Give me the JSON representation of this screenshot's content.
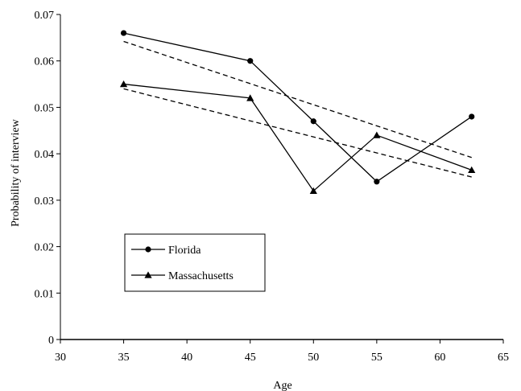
{
  "chart_data": {
    "type": "line",
    "xlabel": "Age",
    "ylabel": "Probability of interview",
    "xlim": [
      30,
      65
    ],
    "ylim": [
      0,
      0.07
    ],
    "x_ticks": [
      "30",
      "35",
      "40",
      "45",
      "50",
      "55",
      "60",
      "65"
    ],
    "y_ticks": [
      "0",
      "0.01",
      "0.02",
      "0.03",
      "0.04",
      "0.05",
      "0.06",
      "0.07"
    ],
    "grid": false,
    "legend_position": "lower-left",
    "series": [
      {
        "name": "Florida",
        "marker": "circle",
        "x": [
          35,
          45,
          50,
          55,
          62.5
        ],
        "y": [
          0.066,
          0.06,
          0.047,
          0.034,
          0.048
        ],
        "trend": [
          [
            35,
            0.0642
          ],
          [
            62.5,
            0.0392
          ]
        ]
      },
      {
        "name": "Massachusetts",
        "marker": "triangle",
        "x": [
          35,
          45,
          50,
          55,
          62.5
        ],
        "y": [
          0.055,
          0.052,
          0.032,
          0.044,
          0.0365
        ],
        "trend": [
          [
            35,
            0.054
          ],
          [
            62.5,
            0.035
          ]
        ]
      }
    ],
    "colors": {
      "line": "#000000",
      "trend": "#000000"
    }
  }
}
